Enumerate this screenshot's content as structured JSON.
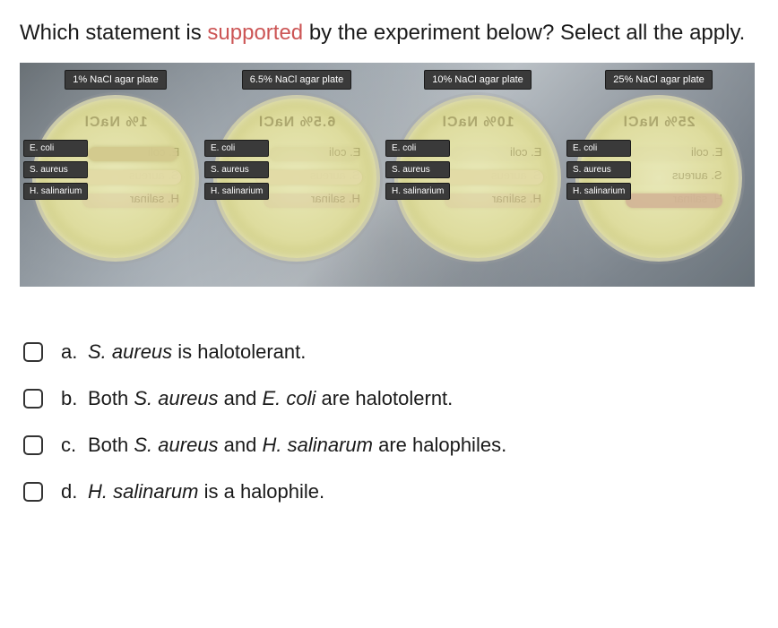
{
  "question": {
    "prefix": "Which statement is ",
    "highlight": "supported",
    "suffix": " by the experiment below? Select all the apply."
  },
  "plates": [
    {
      "label": "1% NaCl agar plate",
      "ghost": "1% NaCl",
      "ecoli_opacity": "",
      "saureus_opacity": "",
      "hsal_opacity": "faint",
      "ghost_rows": [
        "E. coli",
        "S. aureus",
        "H. salinar"
      ]
    },
    {
      "label": "6.5% NaCl agar plate",
      "ghost": "6.5% NaCl",
      "ecoli_opacity": "faint",
      "saureus_opacity": "",
      "hsal_opacity": "faint",
      "ghost_rows": [
        "E. coli",
        "S. aureus",
        "H. salinar"
      ]
    },
    {
      "label": "10% NaCl agar plate",
      "ghost": "10% NaCl",
      "ecoli_opacity": "gone",
      "saureus_opacity": "",
      "hsal_opacity": "faint",
      "ghost_rows": [
        "E. coli",
        "S. aureus",
        "H. salinar"
      ]
    },
    {
      "label": "25% NaCl agar plate",
      "ghost": "25% NaCl",
      "ecoli_opacity": "gone",
      "saureus_opacity": "gone",
      "hsal_opacity": "",
      "ghost_rows": [
        "E. coli",
        "S. aureus",
        "H. salinar"
      ]
    }
  ],
  "organisms": [
    "E. coli",
    "S. aureus",
    "H. salinarium"
  ],
  "answers": [
    {
      "letter": "a.",
      "parts": [
        {
          "t": "S. aureus",
          "i": true
        },
        {
          "t": " is halotolerant.",
          "i": false
        }
      ]
    },
    {
      "letter": "b.",
      "parts": [
        {
          "t": "Both ",
          "i": false
        },
        {
          "t": "S. aureus",
          "i": true
        },
        {
          "t": " and ",
          "i": false
        },
        {
          "t": "E. coli",
          "i": true
        },
        {
          "t": " are halotolernt.",
          "i": false
        }
      ]
    },
    {
      "letter": "c.",
      "parts": [
        {
          "t": "Both ",
          "i": false
        },
        {
          "t": "S. aureus",
          "i": true
        },
        {
          "t": " and  ",
          "i": false
        },
        {
          "t": "H. salinarum",
          "i": true
        },
        {
          "t": " are halophiles.",
          "i": false
        }
      ]
    },
    {
      "letter": "d.",
      "parts": [
        {
          "t": "H. salinarum",
          "i": true
        },
        {
          "t": " is a halophile.",
          "i": false
        }
      ]
    }
  ],
  "colors": {
    "highlight": "#cc5555",
    "label_bg": "#3a3a3a",
    "dish_fill": "#dedc9e"
  }
}
